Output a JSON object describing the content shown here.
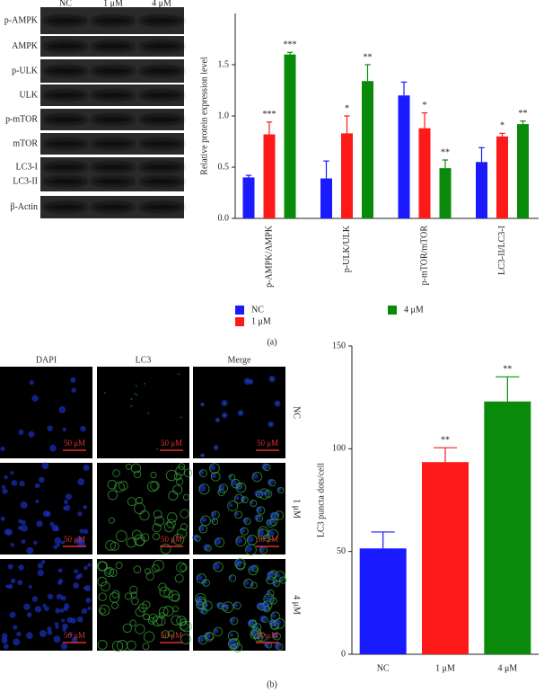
{
  "blot": {
    "lanes": [
      "NC",
      "1 μM",
      "4 μM"
    ],
    "rows": [
      "p-AMPK",
      "AMPK",
      "p-ULK",
      "ULK",
      "p-mTOR",
      "mTOR",
      "LC3-I",
      "LC3-II",
      "β-Actin"
    ]
  },
  "microscopy": {
    "columns": [
      "DAPI",
      "LC3",
      "Merge"
    ],
    "rows": [
      "NC",
      "1 μM",
      "4 μM"
    ],
    "scale_bar": "50 μM"
  },
  "panels": [
    "(a)",
    "(b)"
  ],
  "chart_data": [
    {
      "type": "bar",
      "y_label": "Relative protein expression level",
      "categories": [
        "p-AMPK/AMPK",
        "p-ULK/ULK",
        "p-mTOR/mTOR",
        "LC3-II/LC3-I"
      ],
      "series": [
        {
          "name": "NC",
          "color": "#1a1aff",
          "values": [
            0.4,
            0.39,
            1.2,
            0.55
          ],
          "errors": [
            0.02,
            0.17,
            0.13,
            0.14
          ],
          "significance": [
            null,
            null,
            null,
            null
          ]
        },
        {
          "name": "1 μM",
          "color": "#ff1a1a",
          "values": [
            0.82,
            0.83,
            0.88,
            0.8
          ],
          "errors": [
            0.12,
            0.17,
            0.15,
            0.03
          ],
          "significance": [
            "***",
            "*",
            "*",
            "*"
          ]
        },
        {
          "name": "4 μM",
          "color": "#0a8a0a",
          "values": [
            1.6,
            1.34,
            0.49,
            0.92
          ],
          "errors": [
            0.02,
            0.16,
            0.08,
            0.03
          ],
          "significance": [
            "***",
            "**",
            "**",
            "**"
          ]
        }
      ],
      "ylim": [
        0,
        2.0
      ],
      "yticks": [
        {
          "value": 0,
          "label": "0.0"
        },
        {
          "value": 0.5,
          "label": "0.5"
        },
        {
          "value": 1,
          "label": "1.0"
        },
        {
          "value": 1.5,
          "label": "1.5"
        }
      ]
    },
    {
      "type": "bar",
      "y_label": "LC3 puncta dots/cell",
      "categories": [
        "NC",
        "1 μM",
        "4 μM"
      ],
      "values": [
        51.5,
        93.5,
        123
      ],
      "errors": [
        8,
        7,
        12
      ],
      "significance": [
        null,
        "**",
        "**"
      ],
      "colors": [
        "#1a1aff",
        "#ff1a1a",
        "#0a8a0a"
      ],
      "ylim": [
        0,
        150
      ],
      "yticks": [
        0,
        50,
        100,
        150
      ]
    }
  ]
}
